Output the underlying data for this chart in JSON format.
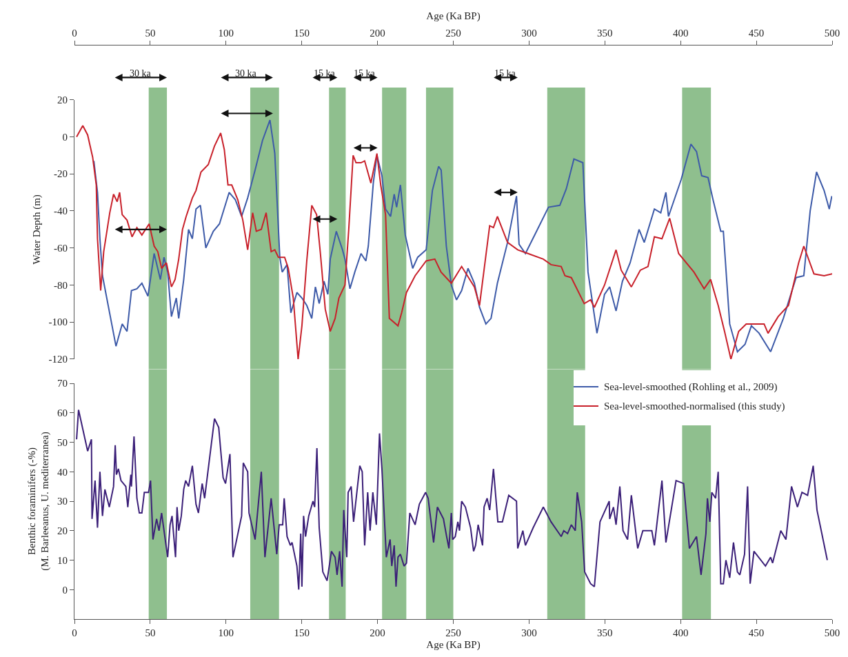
{
  "chart_data": [
    {
      "type": "line",
      "xlabel": "Age (Ka BP)",
      "ylabel": "Water Depth (m)",
      "xlim": [
        0,
        500
      ],
      "xticks": [
        0,
        50,
        100,
        150,
        200,
        250,
        300,
        350,
        400,
        450,
        500
      ],
      "ylim": [
        -120,
        20
      ],
      "yticks": [
        -120,
        -100,
        -80,
        -60,
        -40,
        -20,
        0,
        20
      ],
      "legend": "bottom right",
      "annotations": [
        "30 ka",
        "30 ka",
        "15 ka",
        "15 ka",
        "15 ka"
      ],
      "bands": [
        {
          "axis": "x",
          "from": 49,
          "to": 61,
          "color": "#8fbf8e"
        },
        {
          "axis": "x",
          "from": 116,
          "to": 135,
          "color": "#8fbf8e"
        },
        {
          "axis": "x",
          "from": 168,
          "to": 179,
          "color": "#8fbf8e"
        },
        {
          "axis": "x",
          "from": 203,
          "to": 219,
          "color": "#8fbf8e"
        },
        {
          "axis": "x",
          "from": 232,
          "to": 250,
          "color": "#8fbf8e"
        },
        {
          "axis": "x",
          "from": 312,
          "to": 337,
          "color": "#8fbf8e"
        },
        {
          "axis": "x",
          "from": 401,
          "to": 420,
          "color": "#8fbf8e"
        }
      ],
      "series": [
        {
          "name": "Sea-level-smoothed (Rohling et al., 2009)",
          "color": "#3d5aa8",
          "x": [
            12.8,
            15.2,
            16.8,
            18.5,
            27.4,
            31.5,
            34.7,
            37.6,
            41.2,
            44.5,
            48.5,
            52.6,
            56.7,
            59.1,
            61.5,
            64,
            67.2,
            68.8,
            72.1,
            75.3,
            77.8,
            80.2,
            83.1,
            86.7,
            91.6,
            95.7,
            102.1,
            106.2,
            110.3,
            114.3,
            119.2,
            124.1,
            129,
            132.2,
            135.5,
            137.1,
            140.3,
            142.8,
            146.8,
            150.1,
            153.3,
            156.6,
            159,
            161.5,
            164.7,
            167.2,
            168.8,
            172.8,
            176.9,
            178.5,
            181.8,
            185,
            189.1,
            192.3,
            193.9,
            197.2,
            199.6,
            202.9,
            205.3,
            208.6,
            211,
            212.6,
            215.1,
            218.3,
            223.2,
            226.5,
            232.1,
            236.2,
            240.3,
            242,
            245.4,
            248.7,
            252.1,
            255.5,
            259.7,
            263.9,
            267.3,
            271.5,
            274.9,
            279.1,
            285.8,
            291.7,
            293.4,
            297.6,
            304.3,
            312.8,
            320.3,
            324.6,
            329.6,
            335.5,
            338.9,
            344.8,
            349.8,
            353.2,
            357.4,
            361.6,
            366.7,
            372.6,
            376,
            382.7,
            386.9,
            390.3,
            392,
            400.4,
            406.8,
            410.5,
            413.9,
            418.1,
            421.4,
            426.5,
            428.2,
            432.4,
            437.5,
            442.5,
            446.7,
            451.8,
            459.4,
            467.8,
            476.2,
            481.3,
            485.5,
            489.7,
            494.7,
            498.1,
            499.8
          ],
          "values": [
            -13,
            -30,
            -55,
            -75,
            -113,
            -101,
            -105,
            -83,
            -82,
            -79,
            -86,
            -63,
            -77,
            -65,
            -73,
            -97,
            -87,
            -98,
            -77,
            -50,
            -55,
            -39,
            -37,
            -60,
            -51,
            -47,
            -30,
            -34,
            -43,
            -33,
            -18,
            -2,
            9,
            -9,
            -65,
            -73,
            -69,
            -95,
            -84,
            -87,
            -91,
            -98,
            -81,
            -90,
            -78,
            -85,
            -66,
            -51,
            -61,
            -66,
            -82,
            -73,
            -63,
            -67,
            -59,
            -25,
            -10,
            -21,
            -39,
            -43,
            -31,
            -38,
            -26,
            -53,
            -71,
            -65,
            -61,
            -29,
            -16,
            -18,
            -59,
            -80,
            -88,
            -83,
            -71,
            -79,
            -92,
            -101,
            -98,
            -79,
            -57,
            -32,
            -58,
            -63,
            -52,
            -38,
            -37,
            -28,
            -12,
            -14,
            -73,
            -106,
            -85,
            -81,
            -94,
            -78,
            -68,
            -50,
            -57,
            -39,
            -41,
            -30,
            -43,
            -23,
            -4,
            -8,
            -21,
            -22,
            -34,
            -51,
            -51,
            -101,
            -116,
            -112,
            -102,
            -106,
            -116,
            -98,
            -76,
            -75,
            -40,
            -19,
            -29,
            -39,
            -32
          ]
        },
        {
          "name": "Sea-level-smoothed-normalised (this study)",
          "color": "#c8202a",
          "x": [
            1.4,
            5.5,
            8.7,
            12,
            14.4,
            15.2,
            17.3,
            19.3,
            23.3,
            25.8,
            28.2,
            29.8,
            31.5,
            34.7,
            38,
            41.2,
            44.5,
            49.3,
            52.6,
            55,
            57.5,
            60.7,
            64,
            66.4,
            68.8,
            71.3,
            73.7,
            77.8,
            80.2,
            83.5,
            88.3,
            92.4,
            96.5,
            98.9,
            101.3,
            103.8,
            107.8,
            111.1,
            114.3,
            117.6,
            120,
            123.3,
            126.5,
            129.8,
            132.2,
            134.6,
            138.7,
            141.1,
            144.4,
            147.6,
            150.1,
            153.3,
            156.6,
            159.8,
            162.3,
            165.5,
            168.8,
            172,
            174.5,
            178.5,
            181,
            183.9,
            185.8,
            189.1,
            191.5,
            195.6,
            199.6,
            202.1,
            205.3,
            207.8,
            213.5,
            215.9,
            219.1,
            224.8,
            232.1,
            237.8,
            241.9,
            248.7,
            255.5,
            263.9,
            267.3,
            274,
            276.5,
            279.1,
            285.8,
            292.5,
            299.3,
            309.4,
            314.5,
            321.2,
            323.7,
            327.9,
            336.4,
            340.6,
            343.1,
            349.8,
            357.4,
            360.8,
            367.5,
            373.4,
            378.5,
            382.7,
            387.7,
            392.8,
            398.7,
            408.8,
            415.5,
            419.8,
            424.8,
            429,
            433.2,
            438.3,
            443.3,
            455.1,
            457.7,
            464.4,
            471.2,
            477.9,
            481.3,
            488,
            494.7,
            500
          ],
          "values": [
            0,
            6,
            1,
            -11,
            -26,
            -55,
            -83,
            -62,
            -41,
            -31,
            -35,
            -30,
            -42,
            -45,
            -54,
            -49,
            -53,
            -47,
            -59,
            -62,
            -71,
            -68,
            -81,
            -77,
            -66,
            -50,
            -43,
            -33,
            -29,
            -19,
            -15,
            -5,
            2,
            -7,
            -26,
            -26,
            -34,
            -45,
            -61,
            -41,
            -51,
            -50,
            -41,
            -62,
            -61,
            -65,
            -65,
            -71,
            -87,
            -120,
            -102,
            -67,
            -37,
            -42,
            -63,
            -93,
            -105,
            -98,
            -87,
            -80,
            -50,
            -10,
            -14,
            -14,
            -13,
            -25,
            -9,
            -26,
            -42,
            -98,
            -102,
            -95,
            -84,
            -75,
            -67,
            -66,
            -73,
            -79,
            -70,
            -81,
            -91,
            -48,
            -49,
            -43,
            -57,
            -61,
            -63,
            -66,
            -69,
            -70,
            -75,
            -76,
            -90,
            -88,
            -92,
            -80,
            -61,
            -72,
            -81,
            -72,
            -70,
            -54,
            -55,
            -44,
            -63,
            -73,
            -82,
            -77,
            -91,
            -105,
            -120,
            -105,
            -101,
            -101,
            -106,
            -97,
            -91,
            -68,
            -59,
            -74,
            -75,
            -74
          ]
        }
      ]
    },
    {
      "type": "line",
      "xlabel": "Age (Ka BP)",
      "ylabel": "Benthic foraminifers (-%)\n(M. Barleeanus, U. mediterranea)",
      "xlim": [
        0,
        500
      ],
      "xticks": [
        0,
        50,
        100,
        150,
        200,
        250,
        300,
        350,
        400,
        450,
        500
      ],
      "ylim": [
        -10,
        70
      ],
      "yticks": [
        0,
        10,
        20,
        30,
        40,
        50,
        60,
        70
      ],
      "bands": [
        {
          "axis": "x",
          "from": 49,
          "to": 61,
          "color": "#8fbf8e"
        },
        {
          "axis": "x",
          "from": 116,
          "to": 135,
          "color": "#8fbf8e"
        },
        {
          "axis": "x",
          "from": 168,
          "to": 179,
          "color": "#8fbf8e"
        },
        {
          "axis": "x",
          "from": 203,
          "to": 219,
          "color": "#8fbf8e"
        },
        {
          "axis": "x",
          "from": 232,
          "to": 250,
          "color": "#8fbf8e"
        },
        {
          "axis": "x",
          "from": 312,
          "to": 337,
          "color": "#8fbf8e"
        },
        {
          "axis": "x",
          "from": 401,
          "to": 420,
          "color": "#8fbf8e"
        }
      ],
      "series": [
        {
          "color": "#3b1f78",
          "x": [
            1.4,
            2.7,
            8.7,
            11.2,
            11.6,
            13.6,
            15.2,
            16.8,
            18.5,
            20.1,
            23,
            25.8,
            26.9,
            27.7,
            29,
            30.7,
            33.9,
            35.2,
            37.2,
            37.6,
            39.3,
            41.2,
            42.8,
            44.5,
            46.1,
            48.9,
            50.2,
            51.8,
            54.2,
            55.8,
            57.5,
            61.5,
            63.1,
            64.4,
            66.7,
            67.7,
            68.8,
            70.5,
            72.1,
            73.4,
            75.3,
            77.8,
            80.2,
            81.8,
            84.3,
            85.9,
            92.4,
            95.2,
            98.1,
            99.7,
            102.6,
            104.6,
            110.3,
            111.4,
            114.3,
            115.2,
            119.2,
            123.3,
            125.7,
            129.8,
            133.5,
            135.1,
            137.4,
            138.4,
            140.3,
            142.5,
            143.6,
            146.8,
            148,
            149.3,
            150.1,
            151.2,
            152.5,
            154.6,
            157.4,
            158.5,
            160,
            161.5,
            163.9,
            166.7,
            169.6,
            172,
            173.3,
            175,
            176.6,
            177.7,
            179.7,
            180.6,
            182.6,
            184.2,
            188.3,
            189.9,
            191.5,
            193.5,
            195.1,
            196.9,
            199.2,
            201.3,
            202.9,
            205.8,
            208.3,
            209.4,
            211,
            212.2,
            213.5,
            215.1,
            217.5,
            219.1,
            221.3,
            224.8,
            227.6,
            231.7,
            233.4,
            237,
            239.5,
            243.5,
            245.6,
            247.1,
            248.7,
            249.6,
            251.3,
            253,
            254.1,
            255.5,
            258,
            261.4,
            263.4,
            264.7,
            266.4,
            269.3,
            270.3,
            272.3,
            274,
            276.5,
            279.4,
            282.4,
            286.6,
            291.7,
            292.5,
            295.9,
            297.6,
            302.7,
            309.4,
            314.5,
            321.2,
            322.9,
            325.4,
            327.9,
            330.5,
            331.8,
            334.7,
            336.7,
            340.6,
            343.1,
            346.8,
            352.9,
            353.2,
            355.7,
            357.4,
            359.9,
            362,
            365,
            367.5,
            371.7,
            375.1,
            381,
            382.7,
            387.7,
            390.3,
            397,
            402,
            405.8,
            410.5,
            413.5,
            416.7,
            417.7,
            419.3,
            420.6,
            423.1,
            424.8,
            426.5,
            428.2,
            429.9,
            432.4,
            434.9,
            437.5,
            439.1,
            442.2,
            444.2,
            445.9,
            448.4,
            456,
            459.4,
            460.7,
            466.1,
            469.5,
            473.2,
            477.1,
            480.1,
            483.8,
            487.5,
            490,
            496.8
          ],
          "values": [
            51,
            61,
            47,
            51,
            24,
            37,
            21,
            40,
            25,
            34,
            28,
            35,
            49,
            39,
            41,
            37,
            35,
            28,
            39,
            35,
            52,
            31,
            26,
            26,
            33,
            33,
            37,
            17,
            24,
            20,
            26,
            11,
            22,
            25,
            11,
            28,
            20,
            25,
            34,
            37,
            35,
            42,
            29,
            26,
            36,
            31,
            58,
            55,
            38,
            36,
            46,
            11,
            25,
            43,
            40,
            26,
            17,
            40,
            11,
            31,
            12,
            22,
            22,
            31,
            18,
            15,
            16,
            8,
            0,
            19,
            1,
            25,
            18,
            25,
            30,
            28,
            48,
            21,
            6,
            3,
            13,
            11,
            5,
            13,
            1,
            27,
            11,
            33,
            35,
            23,
            42,
            40,
            15,
            33,
            20,
            33,
            22,
            53,
            41,
            11,
            17,
            8,
            15,
            1,
            11,
            12,
            8,
            9,
            26,
            22,
            29,
            33,
            31,
            16,
            28,
            24,
            18,
            14,
            26,
            17,
            18,
            23,
            20,
            30,
            28,
            21,
            13,
            15,
            22,
            15,
            28,
            31,
            27,
            41,
            23,
            23,
            32,
            30,
            14,
            20,
            15,
            21,
            28,
            23,
            18,
            20,
            19,
            22,
            20,
            33,
            23,
            6,
            2,
            1,
            23,
            30,
            24,
            28,
            22,
            35,
            20,
            17,
            32,
            14,
            20,
            20,
            15,
            37,
            16,
            37,
            36,
            14,
            18,
            5,
            19,
            31,
            23,
            33,
            31,
            40,
            2,
            2,
            10,
            4,
            16,
            6,
            5,
            12,
            35,
            2,
            13,
            8,
            11,
            9,
            20,
            17,
            35,
            28,
            33,
            32,
            42,
            27,
            10
          ]
        }
      ]
    }
  ]
}
